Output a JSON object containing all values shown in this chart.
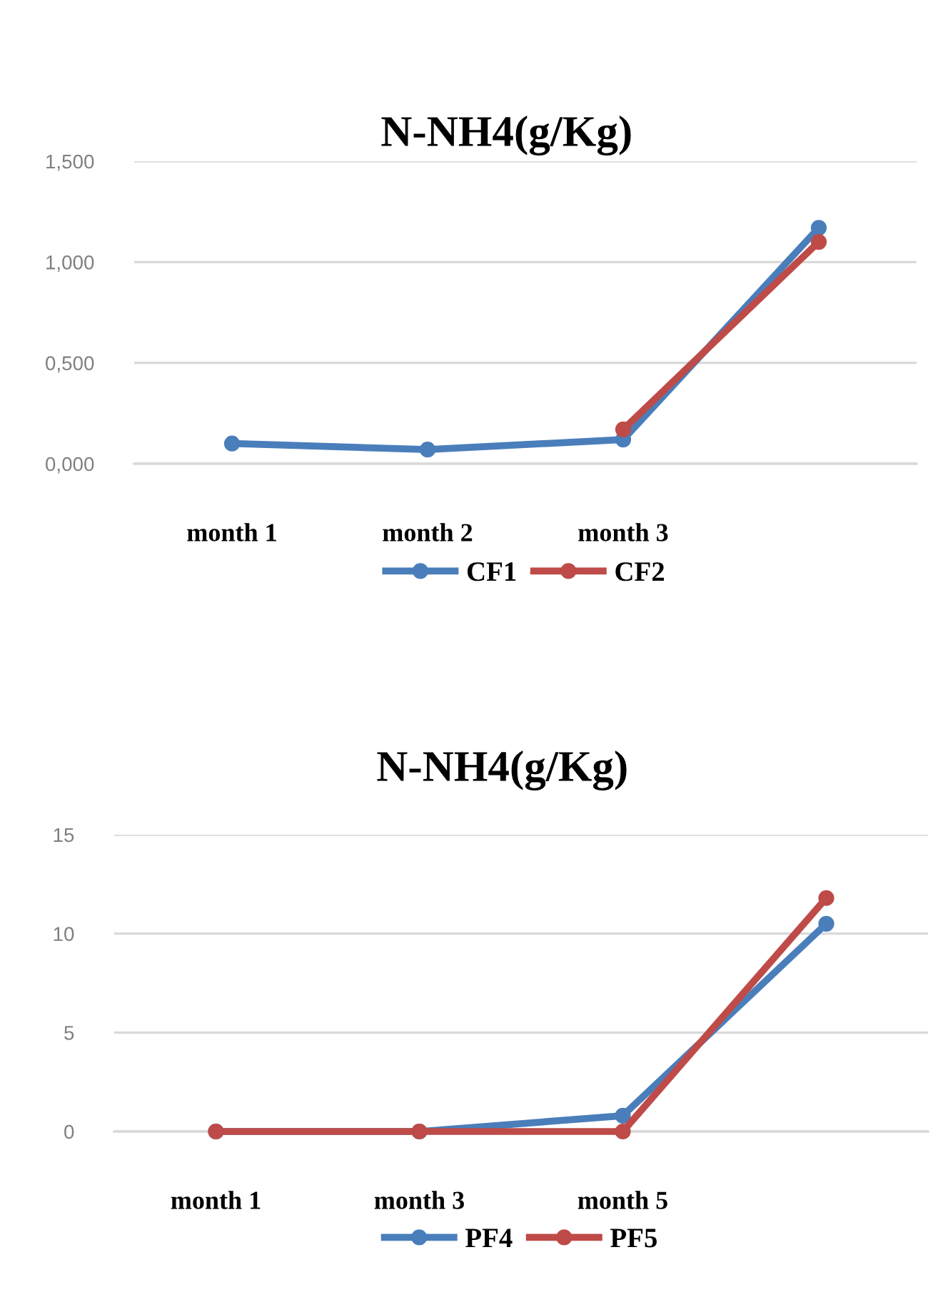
{
  "chart_data": [
    {
      "type": "line",
      "title": "N-NH4(g/Kg)",
      "categories": [
        "month 1",
        "month 2",
        "month 3",
        null
      ],
      "series": [
        {
          "name": "CF1",
          "color": "#4a7ebb",
          "values": [
            0.1,
            0.07,
            0.12,
            1.17
          ]
        },
        {
          "name": "CF2",
          "color": "#be4b48",
          "values": [
            null,
            null,
            0.17,
            1.1
          ]
        }
      ],
      "ylim": [
        0,
        1.5
      ],
      "yticks": [
        {
          "value": 0,
          "label": "0,000"
        },
        {
          "value": 0.5,
          "label": "0,500"
        },
        {
          "value": 1.0,
          "label": "1,000"
        },
        {
          "value": 1.5,
          "label": "1,500"
        }
      ],
      "grid": "y",
      "legend": "bottom",
      "marker": "circle",
      "line_style": "solid"
    },
    {
      "type": "line",
      "title": "N-NH4(g/Kg)",
      "categories": [
        "month 1",
        "month 3",
        "month 5",
        null
      ],
      "series": [
        {
          "name": "PF4",
          "color": "#4a7ebb",
          "values": [
            0,
            0,
            0.8,
            10.5
          ]
        },
        {
          "name": "PF5",
          "color": "#be4b48",
          "values": [
            0,
            0,
            0,
            11.8
          ]
        }
      ],
      "ylim": [
        0,
        15
      ],
      "yticks": [
        0,
        5,
        10,
        15
      ],
      "grid": "y",
      "legend": "bottom",
      "marker": "circle",
      "line_style": "solid"
    }
  ]
}
